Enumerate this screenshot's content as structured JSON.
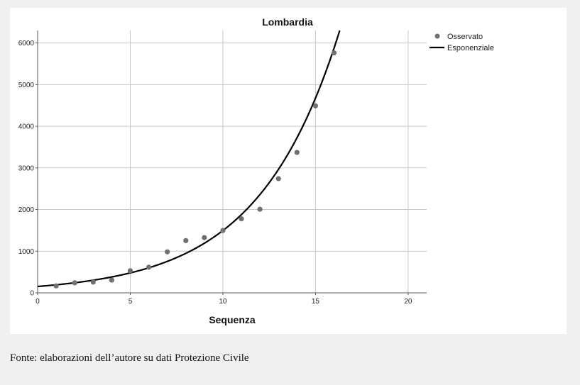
{
  "caption": "Fonte: elaborazioni dell’autore su dati Protezione Civile",
  "chart_data": {
    "type": "scatter",
    "title": "Lombardia",
    "xlabel": "Sequenza",
    "ylabel": "",
    "xlim": [
      0,
      21
    ],
    "ylim": [
      0,
      6300
    ],
    "x_ticks": [
      0,
      5,
      10,
      15,
      20
    ],
    "y_ticks": [
      0,
      1000,
      2000,
      3000,
      4000,
      5000,
      6000
    ],
    "grid": true,
    "legend_position": "top-right",
    "colors": {
      "observed": "#707070",
      "fit": "#000000",
      "grid": "#c8c8c8"
    },
    "series": [
      {
        "name": "Osservato",
        "kind": "points",
        "x": [
          1,
          2,
          3,
          4,
          5,
          6,
          7,
          8,
          9,
          10,
          11,
          12,
          13,
          14,
          15,
          16
        ],
        "y": [
          167,
          240,
          258,
          305,
          531,
          615,
          984,
          1254,
          1326,
          1497,
          1777,
          2008,
          2742,
          3372,
          4490,
          5763
        ]
      },
      {
        "name": "Esponenziale",
        "kind": "line",
        "model": "exponential",
        "a": 153,
        "b": 0.228,
        "x_range": [
          0,
          16.5
        ]
      }
    ]
  }
}
